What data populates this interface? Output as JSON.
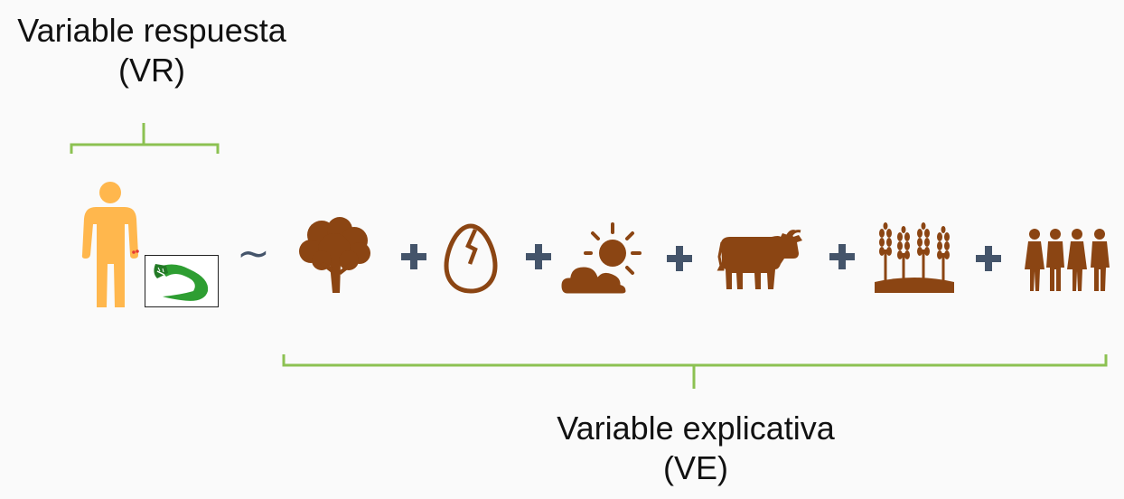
{
  "response_variable": {
    "title": "Variable respuesta",
    "abbr": "(VR)",
    "icons": [
      "person-icon",
      "snake-icon"
    ]
  },
  "explanatory_variable": {
    "title": "Variable explicativa",
    "abbr": "(VE)",
    "icons": [
      "tree-icon",
      "cracked-egg-icon",
      "sun-cloud-icon",
      "cow-icon",
      "wheat-field-icon",
      "people-group-icon"
    ]
  },
  "operators": {
    "tilde": "~",
    "plus": "+"
  },
  "colors": {
    "bracket": "#8cc152",
    "person": "#ffb74d",
    "snake": "#2e9e32",
    "bite": "#e53935",
    "brown": "#8b4513",
    "operator": "#44546a",
    "text": "#111111"
  }
}
